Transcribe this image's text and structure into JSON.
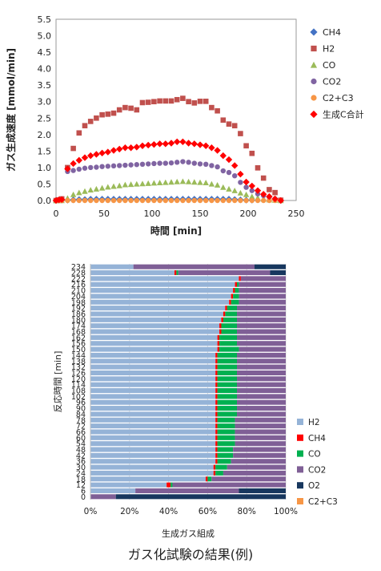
{
  "caption": "ガス化試験の結果(例)",
  "colors": {
    "CH4": "#4472c4",
    "H2": "#c0504d",
    "CO": "#9bbb59",
    "CO2": "#8064a2",
    "C2C3": "#f79646",
    "C_total": "#ff0000",
    "bar_H2": "#95b3d7",
    "bar_CH4": "#ff0000",
    "bar_CO": "#00b050",
    "bar_CO2": "#7f5f96",
    "bar_O2": "#17375e",
    "bar_C2C3": "#f79646"
  },
  "chart_data": [
    {
      "type": "scatter",
      "xlabel": "時間 [min]",
      "ylabel": "ガス生成速度 [mmol/min]",
      "xlim": [
        0,
        250
      ],
      "ylim": [
        0,
        5.5
      ],
      "xticks": [
        "0",
        "50",
        "100",
        "150",
        "200",
        "250"
      ],
      "yticks": [
        "0.0",
        "0.5",
        "1.0",
        "1.5",
        "2.0",
        "2.5",
        "3.0",
        "3.5",
        "4.0",
        "4.5",
        "5.0",
        "5.5"
      ],
      "legend_position": "right",
      "x": [
        0,
        3,
        6,
        12,
        18,
        24,
        30,
        36,
        42,
        48,
        54,
        60,
        66,
        72,
        78,
        84,
        90,
        96,
        102,
        108,
        114,
        120,
        126,
        132,
        138,
        144,
        150,
        156,
        162,
        168,
        174,
        180,
        186,
        192,
        198,
        204,
        210,
        216,
        222,
        228,
        234
      ],
      "series": [
        {
          "name": "CH4",
          "marker": "diamond",
          "values": [
            0,
            0,
            0,
            0.01,
            0.02,
            0.03,
            0.03,
            0.04,
            0.04,
            0.04,
            0.04,
            0.04,
            0.04,
            0.04,
            0.04,
            0.04,
            0.04,
            0.04,
            0.04,
            0.04,
            0.04,
            0.04,
            0.04,
            0.04,
            0.04,
            0.04,
            0.04,
            0.04,
            0.04,
            0.04,
            0.04,
            0.04,
            0.03,
            0.02,
            0.01,
            0.01,
            0,
            0,
            0,
            0,
            0
          ]
        },
        {
          "name": "H2",
          "marker": "square",
          "values": [
            0,
            0.02,
            0.05,
            1.0,
            1.58,
            2.05,
            2.27,
            2.4,
            2.5,
            2.6,
            2.62,
            2.65,
            2.75,
            2.82,
            2.8,
            2.75,
            2.97,
            2.98,
            3.0,
            3.02,
            3.02,
            3.02,
            3.06,
            3.1,
            3.0,
            2.96,
            3.01,
            3.01,
            2.82,
            2.72,
            2.44,
            2.32,
            2.27,
            2.03,
            1.66,
            1.43,
            0.99,
            0.68,
            0.33,
            0.24,
            0.01
          ]
        },
        {
          "name": "CO",
          "marker": "triangle",
          "values": [
            0,
            0,
            0,
            0.07,
            0.18,
            0.24,
            0.28,
            0.32,
            0.35,
            0.38,
            0.41,
            0.43,
            0.45,
            0.48,
            0.49,
            0.5,
            0.51,
            0.52,
            0.53,
            0.54,
            0.55,
            0.56,
            0.57,
            0.58,
            0.57,
            0.56,
            0.55,
            0.54,
            0.5,
            0.47,
            0.4,
            0.35,
            0.3,
            0.23,
            0.18,
            0.12,
            0.08,
            0.04,
            0.02,
            0.01,
            0
          ]
        },
        {
          "name": "CO2",
          "marker": "circle",
          "values": [
            0,
            0,
            0,
            0.88,
            0.91,
            0.95,
            0.98,
            1.0,
            1.01,
            1.03,
            1.04,
            1.05,
            1.06,
            1.07,
            1.08,
            1.09,
            1.1,
            1.11,
            1.12,
            1.13,
            1.13,
            1.14,
            1.16,
            1.18,
            1.16,
            1.13,
            1.11,
            1.1,
            1.06,
            1.02,
            0.9,
            0.85,
            0.75,
            0.55,
            0.4,
            0.3,
            0.2,
            0.15,
            0.1,
            0.05,
            0
          ]
        },
        {
          "name": "C2+C3",
          "marker": "circle",
          "values": [
            0,
            0,
            0,
            0,
            0,
            0,
            0,
            0,
            0,
            0,
            0,
            0,
            0,
            0,
            0,
            0,
            0,
            0,
            0,
            0,
            0,
            0,
            0,
            0,
            0,
            0,
            0,
            0,
            0,
            0,
            0,
            0,
            0,
            0,
            0,
            0,
            0,
            0,
            0,
            0,
            0
          ]
        },
        {
          "name": "生成C合計",
          "marker": "diamond",
          "values": [
            0,
            0.02,
            0.03,
            0.96,
            1.12,
            1.22,
            1.3,
            1.36,
            1.4,
            1.44,
            1.47,
            1.52,
            1.56,
            1.6,
            1.6,
            1.62,
            1.66,
            1.68,
            1.7,
            1.72,
            1.72,
            1.74,
            1.78,
            1.78,
            1.74,
            1.72,
            1.69,
            1.66,
            1.6,
            1.52,
            1.36,
            1.24,
            1.06,
            0.8,
            0.56,
            0.44,
            0.3,
            0.19,
            0.12,
            0.05,
            0
          ]
        }
      ]
    },
    {
      "type": "bar",
      "orientation": "horizontal",
      "stacked": "percent",
      "xlabel": "生成ガス組成",
      "ylabel": "反応時間 [min]",
      "xlim": [
        0,
        100
      ],
      "xticks": [
        "0%",
        "20%",
        "40%",
        "60%",
        "80%",
        "100%"
      ],
      "legend_position": "right",
      "categories": [
        "0",
        "6",
        "12",
        "18",
        "24",
        "30",
        "36",
        "42",
        "48",
        "54",
        "60",
        "66",
        "72",
        "78",
        "84",
        "90",
        "96",
        "102",
        "108",
        "114",
        "120",
        "126",
        "132",
        "138",
        "144",
        "150",
        "156",
        "162",
        "168",
        "174",
        "180",
        "186",
        "192",
        "198",
        "204",
        "210",
        "216",
        "222",
        "228",
        "234"
      ],
      "series": [
        {
          "name": "H2",
          "values": [
            0,
            23,
            39,
            59,
            63,
            63,
            64,
            64,
            64,
            64,
            64,
            64,
            64,
            64,
            64,
            64,
            64,
            64,
            64,
            64,
            64,
            64,
            64,
            64,
            64,
            65,
            65,
            65,
            66,
            66,
            67,
            68,
            69,
            71,
            72,
            73,
            74,
            76,
            43,
            22
          ]
        },
        {
          "name": "CH4",
          "values": [
            0,
            0,
            2,
            1,
            1,
            1,
            1,
            1,
            1,
            1,
            1,
            1,
            1,
            1,
            1,
            1,
            1,
            1,
            1,
            1,
            1,
            1,
            1,
            1,
            1,
            1,
            1,
            1,
            1,
            1,
            1,
            1,
            1,
            1,
            1,
            1,
            1,
            1,
            1,
            0
          ]
        },
        {
          "name": "CO",
          "values": [
            0,
            0,
            1,
            2,
            4,
            6,
            7,
            8,
            8,
            9,
            9,
            9,
            9,
            9,
            10,
            10,
            10,
            10,
            10,
            10,
            10,
            10,
            10,
            10,
            10,
            10,
            9,
            9,
            8,
            8,
            7,
            6,
            5,
            4,
            3,
            2,
            1,
            0,
            1,
            0
          ]
        },
        {
          "name": "CO2",
          "values": [
            13,
            53,
            58,
            38,
            32,
            30,
            28,
            27,
            27,
            26,
            26,
            26,
            26,
            26,
            25,
            25,
            25,
            25,
            25,
            25,
            25,
            25,
            25,
            25,
            25,
            24,
            25,
            25,
            25,
            25,
            25,
            25,
            25,
            24,
            24,
            24,
            24,
            23,
            47,
            62
          ]
        },
        {
          "name": "O2",
          "values": [
            87,
            24,
            0,
            0,
            0,
            0,
            0,
            0,
            0,
            0,
            0,
            0,
            0,
            0,
            0,
            0,
            0,
            0,
            0,
            0,
            0,
            0,
            0,
            0,
            0,
            0,
            0,
            0,
            0,
            0,
            0,
            0,
            0,
            0,
            0,
            0,
            0,
            0,
            8,
            16
          ]
        },
        {
          "name": "C2+C3",
          "values": [
            0,
            0,
            0,
            0,
            0,
            0,
            0,
            0,
            0,
            0,
            0,
            0,
            0,
            0,
            0,
            0,
            0,
            0,
            0,
            0,
            0,
            0,
            0,
            0,
            0,
            0,
            0,
            0,
            0,
            0,
            0,
            0,
            0,
            0,
            0,
            0,
            0,
            0,
            0,
            0
          ]
        }
      ]
    }
  ]
}
